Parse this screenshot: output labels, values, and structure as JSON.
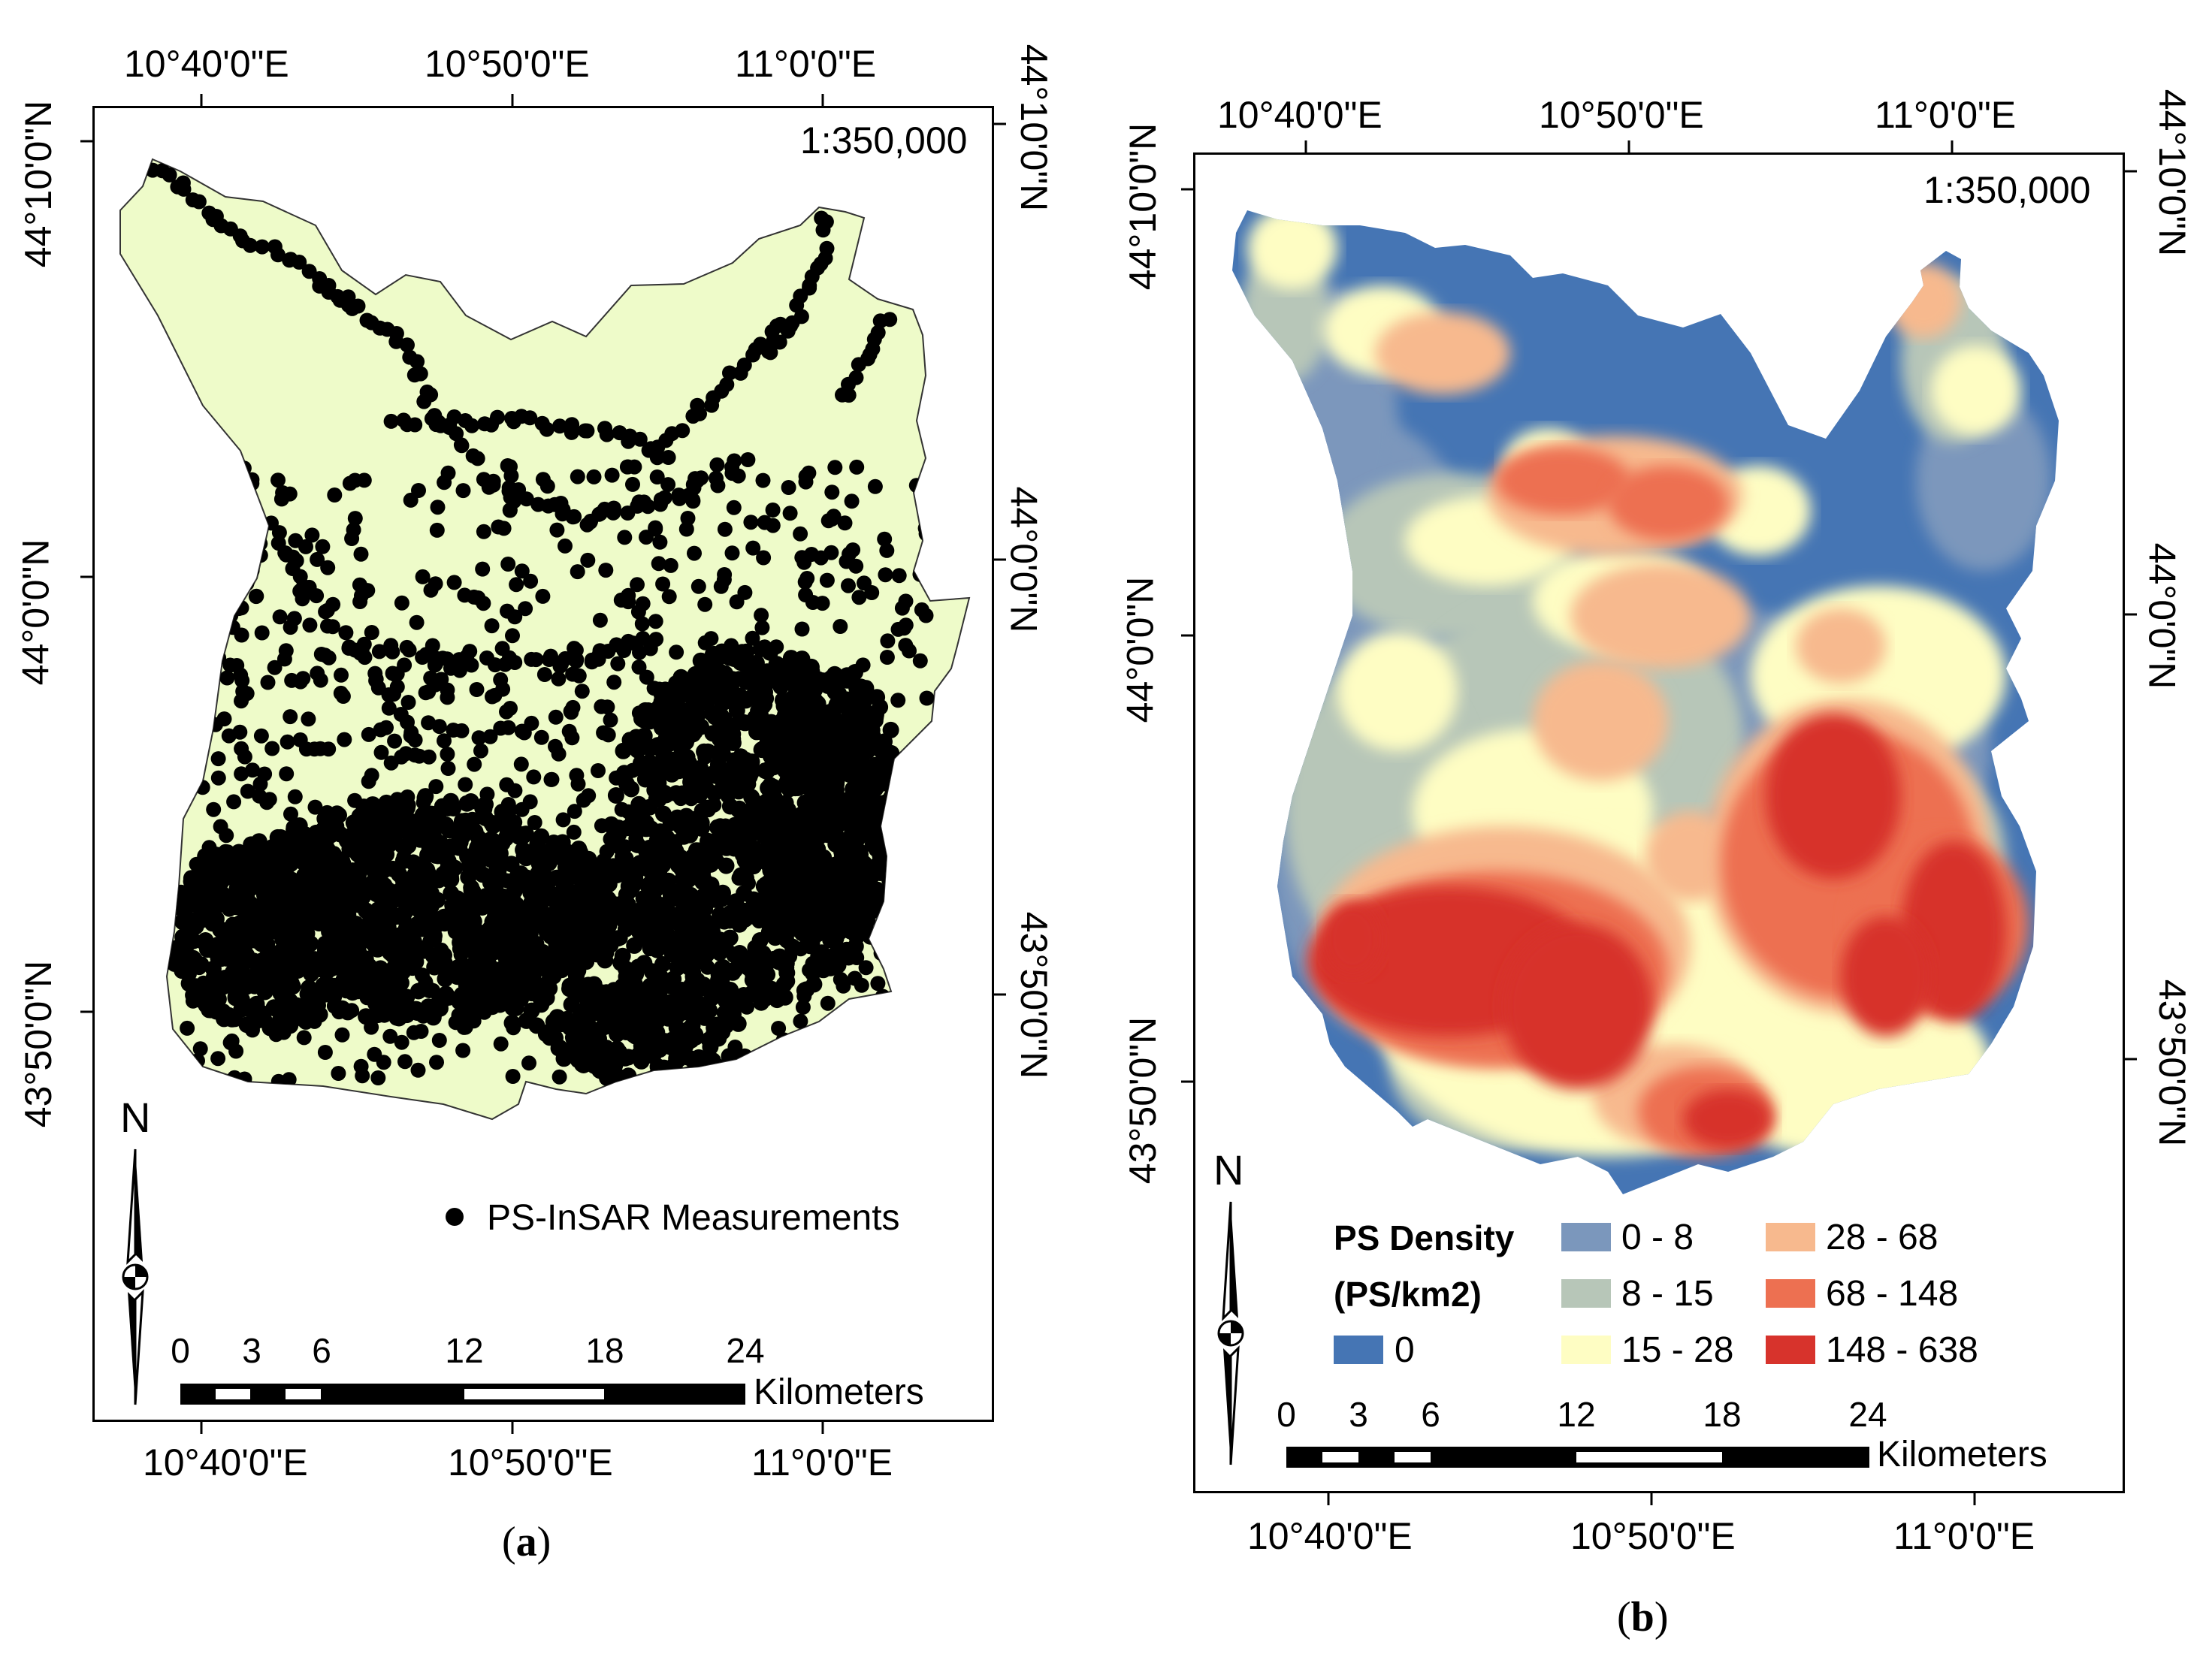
{
  "panel_a": {
    "label": "a",
    "scale": "1:350,000",
    "top_lon": [
      "10°40'0\"E",
      "10°50'0\"E",
      "11°0'0\"E"
    ],
    "bottom_lon": [
      "10°40'0\"E",
      "10°50'0\"E",
      "11°0'0\"E"
    ],
    "left_lat": [
      "44°10'0\"N",
      "44°0'0\"N",
      "43°50'0\"N"
    ],
    "right_lat": [
      "44°10'0\"N",
      "44°0'0\"N",
      "43°50'0\"N"
    ],
    "north": "N",
    "legend_label": "PS-InSAR Measurements",
    "scalebar": {
      "ticks": [
        "0",
        "3",
        "6",
        "12",
        "18",
        "24"
      ],
      "unit": "Kilometers"
    },
    "colors": {
      "region": "#eefbc9",
      "points": "#000000"
    }
  },
  "panel_b": {
    "label": "b",
    "scale": "1:350,000",
    "top_lon": [
      "10°40'0\"E",
      "10°50'0\"E",
      "11°0'0\"E"
    ],
    "bottom_lon": [
      "10°40'0\"E",
      "10°50'0\"E",
      "11°0'0\"E"
    ],
    "left_lat": [
      "44°10'0\"N",
      "44°0'0\"N",
      "43°50'0\"N"
    ],
    "right_lat": [
      "44°10'0\"N",
      "44°0'0\"N",
      "43°50'0\"N"
    ],
    "north": "N",
    "legend": {
      "title_line1": "PS Density",
      "title_line2": "(PS/km2)",
      "classes": [
        {
          "label": "0",
          "color": "#4575b4"
        },
        {
          "label": "0 - 8",
          "color": "#7b97bc"
        },
        {
          "label": "8 - 15",
          "color": "#b7c6b8"
        },
        {
          "label": "15 - 28",
          "color": "#fefdc3"
        },
        {
          "label": "28 - 68",
          "color": "#f7b98e"
        },
        {
          "label": "68 - 148",
          "color": "#ed7051"
        },
        {
          "label": "148 - 638",
          "color": "#d7332c"
        }
      ]
    },
    "scalebar": {
      "ticks": [
        "0",
        "3",
        "6",
        "12",
        "18",
        "24"
      ],
      "unit": "Kilometers"
    }
  }
}
